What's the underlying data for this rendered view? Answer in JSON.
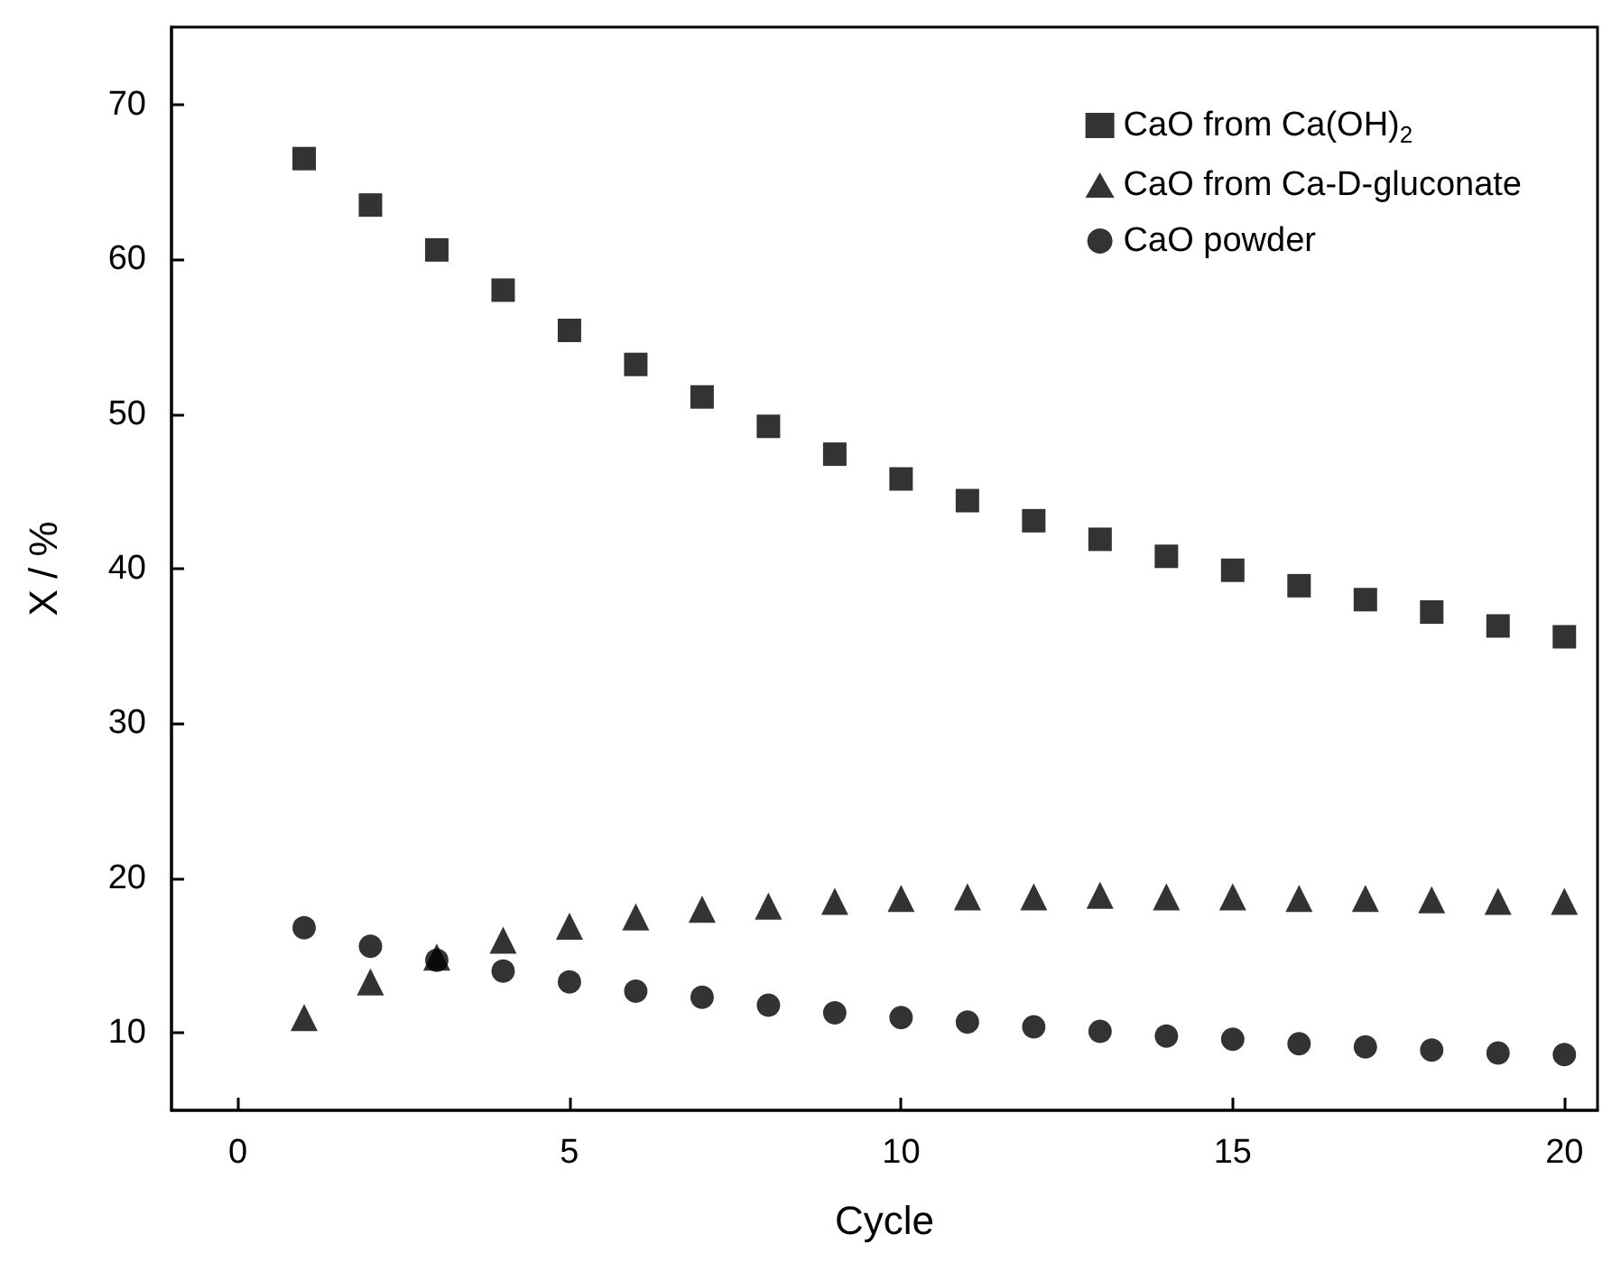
{
  "chart_data": {
    "type": "scatter",
    "xlabel": "Cycle",
    "ylabel": "X / %",
    "xlim": [
      -1,
      20.5
    ],
    "xticks": [
      0,
      5,
      10,
      15,
      20
    ],
    "ylim": [
      5,
      75
    ],
    "yticks": [
      10,
      20,
      30,
      40,
      50,
      60,
      70
    ],
    "grid": false,
    "legend": "top right",
    "x": [
      1,
      2,
      3,
      4,
      5,
      6,
      7,
      8,
      9,
      10,
      11,
      12,
      13,
      14,
      15,
      16,
      17,
      18,
      19,
      20
    ],
    "series": [
      {
        "name": "CaO from Ca(OH)$_{2}$",
        "color": "#000000",
        "marker": "square",
        "values": [
          66.5,
          63.5,
          60.6,
          58.0,
          55.4,
          53.2,
          51.1,
          49.2,
          47.4,
          45.8,
          44.4,
          43.1,
          41.9,
          40.8,
          39.9,
          38.9,
          38.0,
          37.2,
          36.3,
          35.6
        ]
      },
      {
        "name": "CaO from Ca-D-gluconate",
        "color": "#000000",
        "marker": "triangle",
        "values": [
          11.0,
          13.3,
          14.9,
          16.0,
          16.9,
          17.5,
          18.0,
          18.2,
          18.5,
          18.7,
          18.8,
          18.8,
          18.9,
          18.8,
          18.8,
          18.7,
          18.7,
          18.6,
          18.5,
          18.5
        ]
      },
      {
        "name": "CaO powder",
        "color": "#000000",
        "marker": "circle",
        "values": [
          16.8,
          15.6,
          14.7,
          14.0,
          13.3,
          12.7,
          12.3,
          11.8,
          11.3,
          11.0,
          10.7,
          10.4,
          10.1,
          9.8,
          9.6,
          9.3,
          9.1,
          8.9,
          8.7,
          8.6
        ]
      }
    ]
  }
}
